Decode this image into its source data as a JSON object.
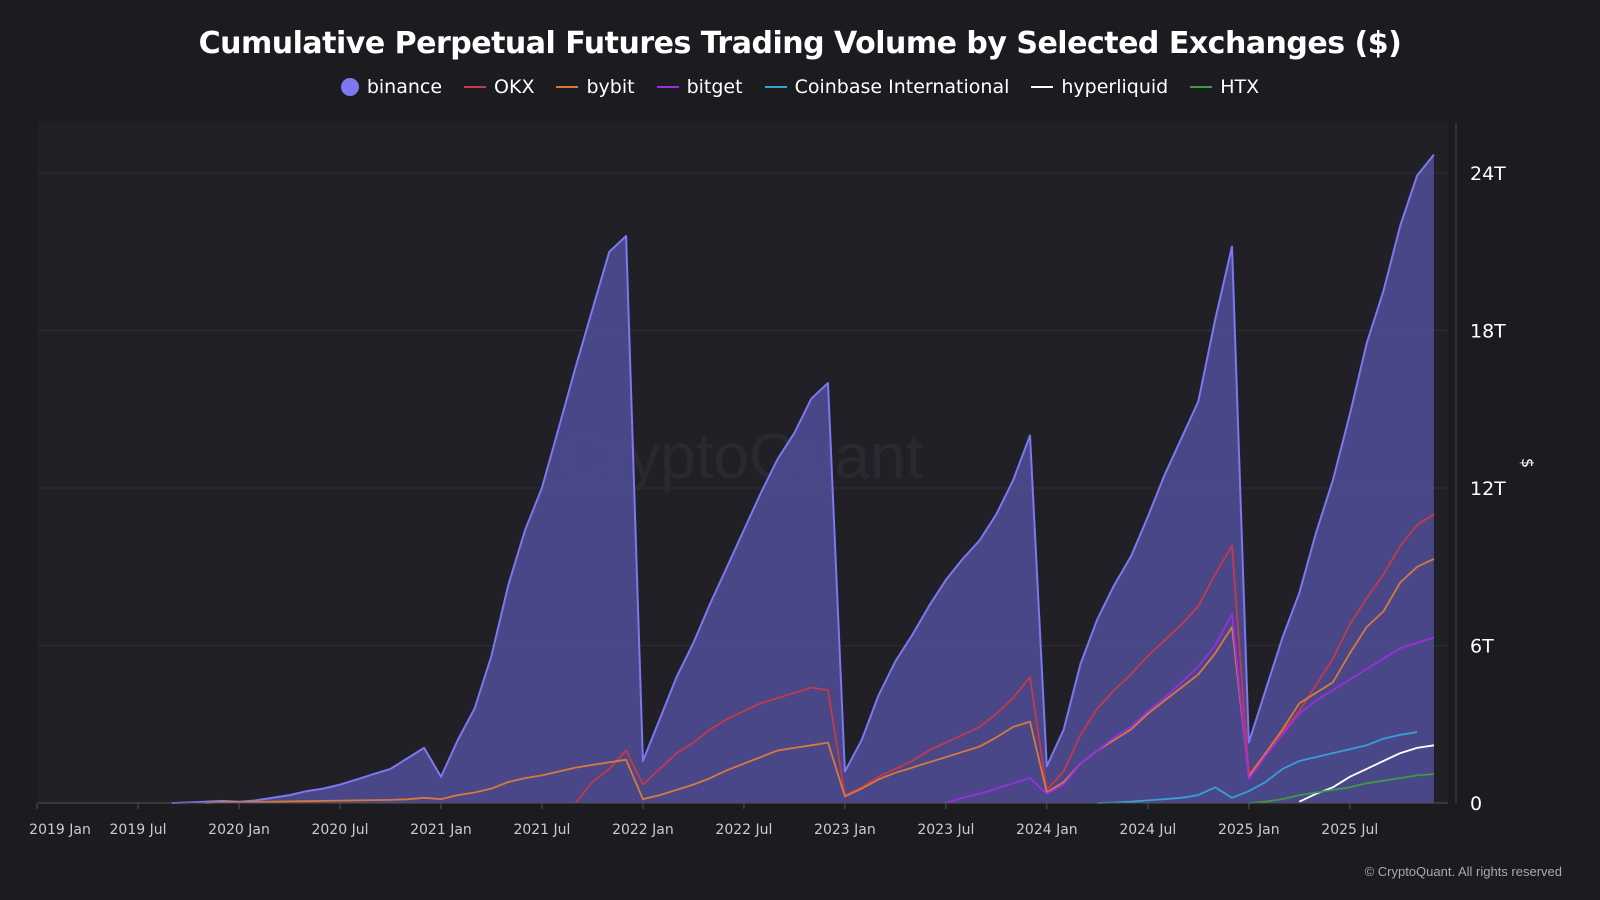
{
  "chart_data": {
    "type": "area",
    "title": "Cumulative Perpetual Futures Trading Volume by Selected Exchanges ($)",
    "xlabel": "",
    "ylabel": "$",
    "x_ticks": [
      "2019 Jan",
      "2019 Jul",
      "2020 Jan",
      "2020 Jul",
      "2021 Jan",
      "2021 Jul",
      "2022 Jan",
      "2022 Jul",
      "2023 Jan",
      "2023 Jul",
      "2024 Jan",
      "2024 Jul",
      "2025 Jan",
      "2025 Jul"
    ],
    "y_ticks": [
      "0",
      "6T",
      "12T",
      "18T",
      "24T"
    ],
    "y_tick_values": [
      0,
      6,
      12,
      18,
      24
    ],
    "ylim": [
      0,
      26
    ],
    "y_unit": "trillion USD",
    "y_axis_side": "right",
    "grid": true,
    "legend_position": "top",
    "x_frequency": "monthly",
    "series": [
      {
        "name": "binance",
        "color": "#7b78f0",
        "fill": "#4c4a8c",
        "start": "2019-09",
        "values": [
          0,
          0.02,
          0.05,
          0.08,
          0.05,
          0.1,
          0.2,
          0.3,
          0.45,
          0.55,
          0.7,
          0.9,
          1.1,
          1.3,
          1.7,
          2.1,
          1.0,
          2.4,
          3.6,
          5.6,
          8.3,
          10.4,
          12.0,
          14.3,
          16.6,
          18.8,
          21.0,
          21.6,
          1.6,
          3.2,
          4.8,
          6.1,
          7.6,
          9.0,
          10.4,
          11.8,
          13.1,
          14.1,
          15.4,
          16.0,
          1.2,
          2.4,
          4.1,
          5.4,
          6.4,
          7.5,
          8.5,
          9.3,
          10.0,
          11.0,
          12.3,
          14.0,
          1.4,
          2.8,
          5.3,
          7.0,
          8.3,
          9.4,
          10.9,
          12.5,
          13.9,
          15.3,
          18.4,
          21.2,
          2.3,
          4.3,
          6.3,
          8.0,
          10.3,
          12.3,
          14.8,
          17.5,
          19.5,
          22.0,
          23.9,
          24.7
        ]
      },
      {
        "name": "OKX",
        "color": "#c23a4c",
        "start": "2021-09",
        "values": [
          0,
          0.8,
          1.3,
          2.0,
          0.7,
          1.3,
          1.9,
          2.3,
          2.8,
          3.2,
          3.5,
          3.8,
          4.0,
          4.2,
          4.4,
          4.3,
          0.3,
          0.6,
          1.0,
          1.3,
          1.6,
          2.0,
          2.3,
          2.6,
          2.9,
          3.4,
          4.0,
          4.8,
          0.5,
          1.2,
          2.6,
          3.6,
          4.3,
          4.9,
          5.6,
          6.2,
          6.8,
          7.5,
          8.7,
          9.8,
          1.1,
          1.9,
          2.7,
          3.5,
          4.5,
          5.5,
          6.8,
          7.8,
          8.7,
          9.8,
          10.6,
          11.0
        ]
      },
      {
        "name": "bybit",
        "color": "#d8783c",
        "start": "2019-11",
        "values": [
          0,
          0.03,
          0.03,
          0.04,
          0.05,
          0.06,
          0.07,
          0.08,
          0.09,
          0.1,
          0.11,
          0.12,
          0.14,
          0.2,
          0.15,
          0.3,
          0.4,
          0.55,
          0.8,
          0.95,
          1.05,
          1.2,
          1.35,
          1.45,
          1.55,
          1.65,
          0.15,
          0.3,
          0.5,
          0.7,
          0.95,
          1.25,
          1.5,
          1.75,
          2.0,
          2.1,
          2.2,
          2.3,
          0.25,
          0.55,
          0.9,
          1.15,
          1.35,
          1.55,
          1.75,
          1.95,
          2.15,
          2.5,
          2.9,
          3.1,
          0.4,
          0.8,
          1.5,
          2.0,
          2.4,
          2.8,
          3.4,
          3.9,
          4.4,
          4.9,
          5.7,
          6.7,
          1.0,
          1.9,
          2.8,
          3.8,
          4.2,
          4.6,
          5.7,
          6.7,
          7.3,
          8.4,
          9.0,
          9.3
        ]
      },
      {
        "name": "bitget",
        "color": "#9a2ee0",
        "start": "2023-07",
        "values": [
          0,
          0.2,
          0.35,
          0.55,
          0.75,
          0.95,
          0.35,
          0.7,
          1.5,
          2.0,
          2.5,
          2.9,
          3.5,
          4.0,
          4.6,
          5.2,
          6.0,
          7.2,
          0.9,
          1.8,
          2.6,
          3.4,
          3.9,
          4.3,
          4.7,
          5.1,
          5.5,
          5.9,
          6.1,
          6.3
        ]
      },
      {
        "name": "Coinbase International",
        "color": "#3a9fd4",
        "start": "2024-04",
        "values": [
          0,
          0.02,
          0.05,
          0.1,
          0.15,
          0.2,
          0.3,
          0.6,
          0.2,
          0.45,
          0.8,
          1.3,
          1.6,
          1.75,
          1.9,
          2.05,
          2.2,
          2.45,
          2.6,
          2.7
        ]
      },
      {
        "name": "hyperliquid",
        "color": "#ffffff",
        "start": "2025-04",
        "values": [
          0.05,
          0.35,
          0.6,
          1.0,
          1.3,
          1.6,
          1.9,
          2.1,
          2.2
        ]
      },
      {
        "name": "HTX",
        "color": "#3f9a44",
        "start": "2025-01",
        "values": [
          0,
          0.05,
          0.15,
          0.3,
          0.4,
          0.5,
          0.6,
          0.75,
          0.85,
          0.95,
          1.05,
          1.1
        ]
      }
    ]
  },
  "watermark": "CryptoQuant",
  "copyright": "© CryptoQuant. All rights reserved",
  "colors": {
    "background": "#1b1b20",
    "plot_background": "#212026"
  }
}
